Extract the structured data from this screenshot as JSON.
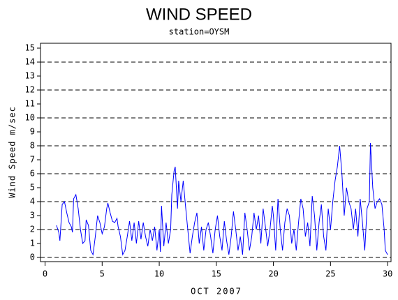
{
  "chart_data": {
    "type": "line",
    "title": "WIND SPEED",
    "subtitle": "station=OYSM",
    "x_label": "OCT 2007",
    "y_label": "Wind Speed m/sec",
    "color": "#0000ff",
    "grid": true,
    "xlim": [
      -0.4,
      30.3
    ],
    "ylim": [
      -0.3,
      15.35
    ],
    "xticks": [
      0,
      5,
      10,
      15,
      20,
      25,
      30
    ],
    "yticks": [
      0,
      1,
      2,
      3,
      4,
      5,
      6,
      7,
      8,
      9,
      10,
      11,
      12,
      13,
      14,
      15
    ],
    "grid_lines": [
      0,
      2,
      4,
      6,
      8,
      10,
      12,
      14
    ],
    "x": [
      1.0,
      1.2,
      1.3,
      1.5,
      1.7,
      1.9,
      2.1,
      2.3,
      2.4,
      2.5,
      2.7,
      2.9,
      3.1,
      3.3,
      3.5,
      3.6,
      3.8,
      4.0,
      4.2,
      4.4,
      4.6,
      4.8,
      5.0,
      5.2,
      5.4,
      5.5,
      5.7,
      5.9,
      6.1,
      6.3,
      6.4,
      6.6,
      6.8,
      7.0,
      7.2,
      7.4,
      7.6,
      7.8,
      8.0,
      8.2,
      8.4,
      8.6,
      8.8,
      9.0,
      9.2,
      9.4,
      9.6,
      9.8,
      10.0,
      10.1,
      10.2,
      10.4,
      10.6,
      10.8,
      11.0,
      11.1,
      11.3,
      11.4,
      11.6,
      11.7,
      11.9,
      12.1,
      12.3,
      12.5,
      12.7,
      12.9,
      13.1,
      13.3,
      13.5,
      13.7,
      13.9,
      14.1,
      14.3,
      14.5,
      14.7,
      14.9,
      15.1,
      15.3,
      15.5,
      15.7,
      15.9,
      16.1,
      16.3,
      16.5,
      16.7,
      16.9,
      17.1,
      17.3,
      17.5,
      17.7,
      17.9,
      18.1,
      18.3,
      18.5,
      18.7,
      18.9,
      19.1,
      19.3,
      19.5,
      19.7,
      19.9,
      20.0,
      20.2,
      20.4,
      20.6,
      20.8,
      21.0,
      21.2,
      21.4,
      21.6,
      21.8,
      22.0,
      22.2,
      22.4,
      22.6,
      22.8,
      23.0,
      23.2,
      23.4,
      23.6,
      23.8,
      24.0,
      24.2,
      24.4,
      24.6,
      24.8,
      25.0,
      25.2,
      25.4,
      25.6,
      25.8,
      26.0,
      26.2,
      26.4,
      26.6,
      26.8,
      27.0,
      27.2,
      27.4,
      27.6,
      27.8,
      28.0,
      28.2,
      28.4,
      28.5,
      28.7,
      28.9,
      29.1,
      29.3,
      29.5,
      29.7,
      29.8,
      30.0
    ],
    "values": [
      2.3,
      1.8,
      1.2,
      3.8,
      4.0,
      3.2,
      2.5,
      2.2,
      1.8,
      4.2,
      4.5,
      3.5,
      2.0,
      1.0,
      1.2,
      2.7,
      2.3,
      0.5,
      0.2,
      1.5,
      3.0,
      2.5,
      1.7,
      2.2,
      3.5,
      3.9,
      3.2,
      2.6,
      2.5,
      2.8,
      2.2,
      1.5,
      0.2,
      0.5,
      1.5,
      2.6,
      1.2,
      2.5,
      1.0,
      2.6,
      1.3,
      2.5,
      1.5,
      0.8,
      2.0,
      1.2,
      2.2,
      0.5,
      2.0,
      0.4,
      3.7,
      0.8,
      2.5,
      1.0,
      2.0,
      4.5,
      6.2,
      6.5,
      3.5,
      5.5,
      4.0,
      5.5,
      3.7,
      2.0,
      0.3,
      1.5,
      2.5,
      3.2,
      1.0,
      2.2,
      0.5,
      2.0,
      2.5,
      1.5,
      0.3,
      2.0,
      3.0,
      1.5,
      0.5,
      2.6,
      1.2,
      0.2,
      1.5,
      3.3,
      2.0,
      0.5,
      1.5,
      0.2,
      3.2,
      2.0,
      0.5,
      1.5,
      3.2,
      2.0,
      3.0,
      1.0,
      3.5,
      2.2,
      0.8,
      2.0,
      3.7,
      3.0,
      0.5,
      4.2,
      2.0,
      0.5,
      2.5,
      3.5,
      3.0,
      1.0,
      2.0,
      0.5,
      2.5,
      4.2,
      3.5,
      1.5,
      2.5,
      0.8,
      4.4,
      3.0,
      0.5,
      2.5,
      3.8,
      1.5,
      0.5,
      3.5,
      2.0,
      4.0,
      5.5,
      6.5,
      8.0,
      6.0,
      3.0,
      5.0,
      4.0,
      3.5,
      2.0,
      3.5,
      1.5,
      4.2,
      2.5,
      0.5,
      3.5,
      4.0,
      8.2,
      5.0,
      3.5,
      4.0,
      4.2,
      3.8,
      2.0,
      0.5,
      0.2
    ]
  }
}
